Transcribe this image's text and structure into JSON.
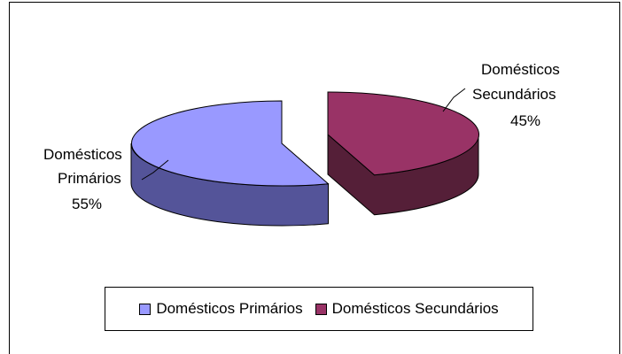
{
  "chart_data": {
    "type": "pie",
    "three_d": true,
    "exploded": true,
    "categories": [
      "Domésticos Primários",
      "Domésticos Secundários"
    ],
    "values": [
      55,
      45
    ],
    "data_labels": [
      {
        "line1": "Domésticos",
        "line2": "Primários",
        "pct": "55%"
      },
      {
        "line1": "Domésticos",
        "line2": "Secundários",
        "pct": "45%"
      }
    ],
    "colors": {
      "primary_top": "#9999ff",
      "primary_side": "#545499",
      "secondary_top": "#993366",
      "secondary_side": "#551f38"
    },
    "legend": {
      "position": "bottom",
      "items": [
        "Domésticos Primários",
        "Domésticos Secundários"
      ]
    }
  }
}
